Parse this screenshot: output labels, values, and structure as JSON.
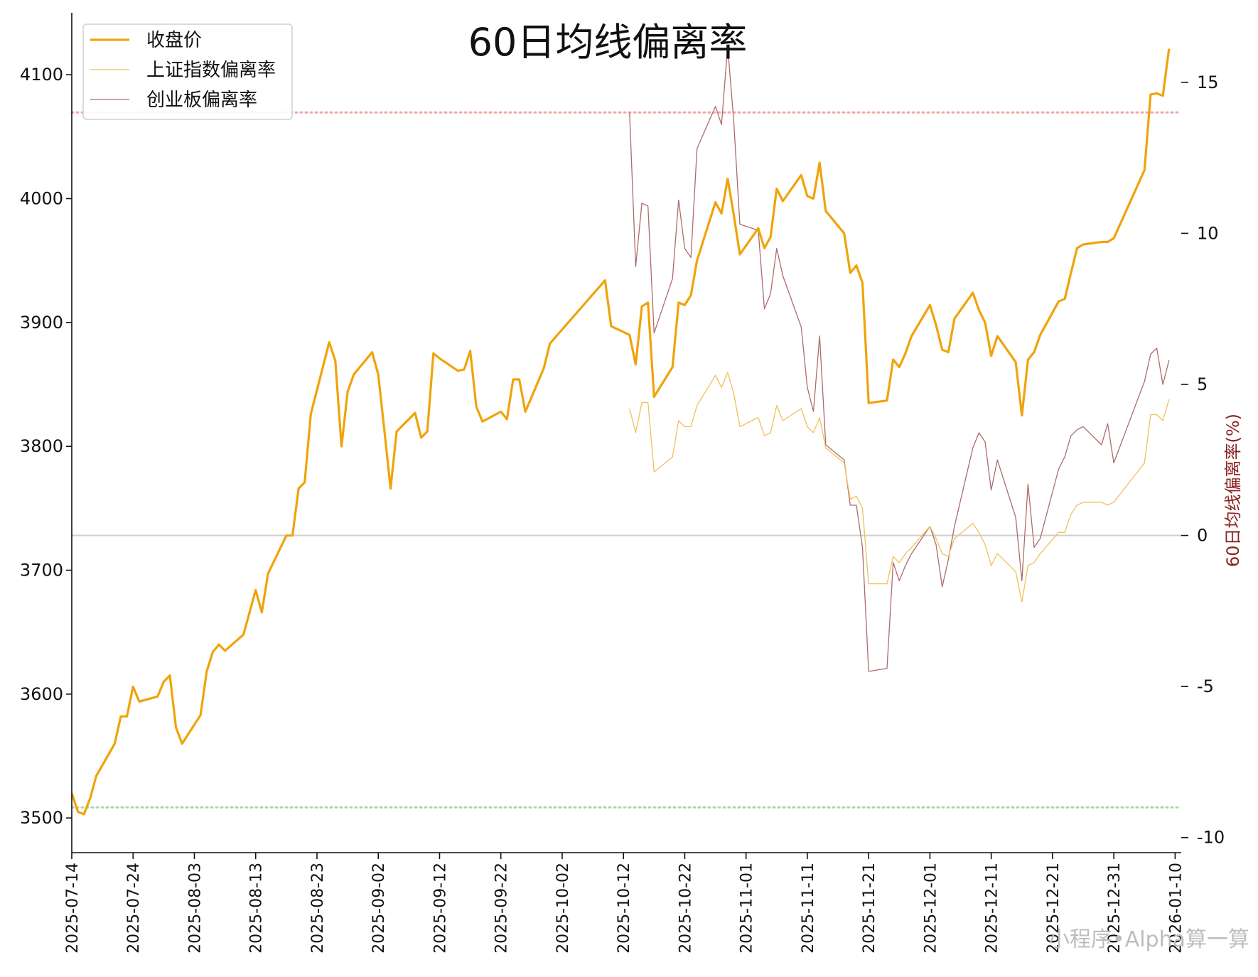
{
  "chart_data": {
    "type": "line",
    "title": "60日均线偏离率",
    "ylabel_right": "60日均线偏离率(%)",
    "ylim_left": [
      3472,
      4150
    ],
    "ylim_right": [
      -10.5,
      17.3
    ],
    "left_ticks": [
      3500,
      3600,
      3700,
      3800,
      3900,
      4000,
      4100
    ],
    "right_ticks": [
      15,
      10,
      5,
      0,
      -5,
      -10
    ],
    "x_range": [
      "2025-07-14",
      "2026-01-11"
    ],
    "x_ticks": [
      "2025-07-14",
      "2025-07-24",
      "2025-08-03",
      "2025-08-13",
      "2025-08-23",
      "2025-09-02",
      "2025-09-12",
      "2025-09-22",
      "2025-10-02",
      "2025-10-12",
      "2025-10-22",
      "2025-11-01",
      "2025-11-11",
      "2025-11-21",
      "2025-12-01",
      "2025-12-11",
      "2025-12-21",
      "2025-12-31",
      "2026-01-10"
    ],
    "legend_position": "top-left",
    "reference_lines": [
      {
        "axis": "right",
        "value": 14.0,
        "color": "#f4a6a6",
        "style": "dotted"
      },
      {
        "axis": "right",
        "value": 0,
        "color": "#d0d0d0",
        "style": "solid"
      },
      {
        "axis": "right",
        "value": -9.0,
        "color": "#a8d8a0",
        "style": "dotted"
      }
    ],
    "series": [
      {
        "name": "收盘价",
        "axis": "left",
        "color": "#f0a30a",
        "width": 3.2,
        "points": [
          [
            "2025-07-14",
            3520
          ],
          [
            "2025-07-15",
            3505
          ],
          [
            "2025-07-16",
            3503
          ],
          [
            "2025-07-17",
            3516
          ],
          [
            "2025-07-18",
            3534
          ],
          [
            "2025-07-21",
            3560
          ],
          [
            "2025-07-22",
            3582
          ],
          [
            "2025-07-23",
            3582
          ],
          [
            "2025-07-24",
            3606
          ],
          [
            "2025-07-25",
            3594
          ],
          [
            "2025-07-28",
            3598
          ],
          [
            "2025-07-29",
            3610
          ],
          [
            "2025-07-30",
            3615
          ],
          [
            "2025-07-31",
            3573
          ],
          [
            "2025-08-01",
            3560
          ],
          [
            "2025-08-04",
            3583
          ],
          [
            "2025-08-05",
            3618
          ],
          [
            "2025-08-06",
            3634
          ],
          [
            "2025-08-07",
            3640
          ],
          [
            "2025-08-08",
            3635
          ],
          [
            "2025-08-11",
            3648
          ],
          [
            "2025-08-12",
            3666
          ],
          [
            "2025-08-13",
            3684
          ],
          [
            "2025-08-14",
            3666
          ],
          [
            "2025-08-15",
            3697
          ],
          [
            "2025-08-18",
            3728
          ],
          [
            "2025-08-19",
            3728
          ],
          [
            "2025-08-20",
            3766
          ],
          [
            "2025-08-21",
            3771
          ],
          [
            "2025-08-22",
            3826
          ],
          [
            "2025-08-25",
            3884
          ],
          [
            "2025-08-26",
            3869
          ],
          [
            "2025-08-27",
            3800
          ],
          [
            "2025-08-28",
            3844
          ],
          [
            "2025-08-29",
            3858
          ],
          [
            "2025-09-01",
            3876
          ],
          [
            "2025-09-02",
            3858
          ],
          [
            "2025-09-03",
            3813
          ],
          [
            "2025-09-04",
            3766
          ],
          [
            "2025-09-05",
            3812
          ],
          [
            "2025-09-08",
            3827
          ],
          [
            "2025-09-09",
            3807
          ],
          [
            "2025-09-10",
            3812
          ],
          [
            "2025-09-11",
            3875
          ],
          [
            "2025-09-12",
            3871
          ],
          [
            "2025-09-15",
            3861
          ],
          [
            "2025-09-16",
            3862
          ],
          [
            "2025-09-17",
            3877
          ],
          [
            "2025-09-18",
            3832
          ],
          [
            "2025-09-19",
            3820
          ],
          [
            "2025-09-22",
            3828
          ],
          [
            "2025-09-23",
            3822
          ],
          [
            "2025-09-24",
            3854
          ],
          [
            "2025-09-25",
            3854
          ],
          [
            "2025-09-26",
            3828
          ],
          [
            "2025-09-29",
            3863
          ],
          [
            "2025-09-30",
            3883
          ],
          [
            "2025-10-09",
            3934
          ],
          [
            "2025-10-10",
            3897
          ],
          [
            "2025-10-13",
            3890
          ],
          [
            "2025-10-14",
            3866
          ],
          [
            "2025-10-15",
            3913
          ],
          [
            "2025-10-16",
            3916
          ],
          [
            "2025-10-17",
            3840
          ],
          [
            "2025-10-20",
            3864
          ],
          [
            "2025-10-21",
            3916
          ],
          [
            "2025-10-22",
            3914
          ],
          [
            "2025-10-23",
            3922
          ],
          [
            "2025-10-24",
            3950
          ],
          [
            "2025-10-27",
            3997
          ],
          [
            "2025-10-28",
            3988
          ],
          [
            "2025-10-29",
            4016
          ],
          [
            "2025-10-30",
            3987
          ],
          [
            "2025-10-31",
            3955
          ],
          [
            "2025-11-03",
            3976
          ],
          [
            "2025-11-04",
            3960
          ],
          [
            "2025-11-05",
            3969
          ],
          [
            "2025-11-06",
            4008
          ],
          [
            "2025-11-07",
            3998
          ],
          [
            "2025-11-10",
            4019
          ],
          [
            "2025-11-11",
            4002
          ],
          [
            "2025-11-12",
            4000
          ],
          [
            "2025-11-13",
            4029
          ],
          [
            "2025-11-14",
            3990
          ],
          [
            "2025-11-17",
            3972
          ],
          [
            "2025-11-18",
            3940
          ],
          [
            "2025-11-19",
            3946
          ],
          [
            "2025-11-20",
            3932
          ],
          [
            "2025-11-21",
            3835
          ],
          [
            "2025-11-24",
            3837
          ],
          [
            "2025-11-25",
            3870
          ],
          [
            "2025-11-26",
            3864
          ],
          [
            "2025-11-27",
            3875
          ],
          [
            "2025-11-28",
            3889
          ],
          [
            "2025-12-01",
            3914
          ],
          [
            "2025-12-02",
            3898
          ],
          [
            "2025-12-03",
            3878
          ],
          [
            "2025-12-04",
            3876
          ],
          [
            "2025-12-05",
            3903
          ],
          [
            "2025-12-08",
            3924
          ],
          [
            "2025-12-09",
            3910
          ],
          [
            "2025-12-10",
            3900
          ],
          [
            "2025-12-11",
            3873
          ],
          [
            "2025-12-12",
            3889
          ],
          [
            "2025-12-15",
            3868
          ],
          [
            "2025-12-16",
            3825
          ],
          [
            "2025-12-17",
            3870
          ],
          [
            "2025-12-18",
            3876
          ],
          [
            "2025-12-19",
            3890
          ],
          [
            "2025-12-22",
            3917
          ],
          [
            "2025-12-23",
            3919
          ],
          [
            "2025-12-24",
            3940
          ],
          [
            "2025-12-25",
            3960
          ],
          [
            "2025-12-26",
            3963
          ],
          [
            "2025-12-29",
            3965
          ],
          [
            "2025-12-30",
            3965
          ],
          [
            "2025-12-31",
            3968
          ],
          [
            "2026-01-05",
            4023
          ],
          [
            "2026-01-06",
            4084
          ],
          [
            "2026-01-07",
            4085
          ],
          [
            "2026-01-08",
            4083
          ],
          [
            "2026-01-09",
            4121
          ]
        ]
      },
      {
        "name": "上证指数偏离率",
        "axis": "right",
        "color": "#efc15a",
        "width": 1.3,
        "points": [
          [
            "2025-10-13",
            4.2
          ],
          [
            "2025-10-14",
            3.4
          ],
          [
            "2025-10-15",
            4.4
          ],
          [
            "2025-10-16",
            4.4
          ],
          [
            "2025-10-17",
            2.1
          ],
          [
            "2025-10-20",
            2.6
          ],
          [
            "2025-10-21",
            3.8
          ],
          [
            "2025-10-22",
            3.6
          ],
          [
            "2025-10-23",
            3.6
          ],
          [
            "2025-10-24",
            4.3
          ],
          [
            "2025-10-27",
            5.3
          ],
          [
            "2025-10-28",
            4.9
          ],
          [
            "2025-10-29",
            5.4
          ],
          [
            "2025-10-30",
            4.7
          ],
          [
            "2025-10-31",
            3.6
          ],
          [
            "2025-11-03",
            3.9
          ],
          [
            "2025-11-04",
            3.3
          ],
          [
            "2025-11-05",
            3.4
          ],
          [
            "2025-11-06",
            4.3
          ],
          [
            "2025-11-07",
            3.8
          ],
          [
            "2025-11-10",
            4.2
          ],
          [
            "2025-11-11",
            3.6
          ],
          [
            "2025-11-12",
            3.4
          ],
          [
            "2025-11-13",
            3.9
          ],
          [
            "2025-11-14",
            2.9
          ],
          [
            "2025-11-17",
            2.4
          ],
          [
            "2025-11-18",
            1.2
          ],
          [
            "2025-11-19",
            1.3
          ],
          [
            "2025-11-20",
            0.9
          ],
          [
            "2025-11-21",
            -1.6
          ],
          [
            "2025-11-24",
            -1.6
          ],
          [
            "2025-11-25",
            -0.7
          ],
          [
            "2025-11-26",
            -0.9
          ],
          [
            "2025-11-27",
            -0.6
          ],
          [
            "2025-11-28",
            -0.4
          ],
          [
            "2025-12-01",
            0.3
          ],
          [
            "2025-12-02",
            -0.1
          ],
          [
            "2025-12-03",
            -0.6
          ],
          [
            "2025-12-04",
            -0.7
          ],
          [
            "2025-12-05",
            -0.1
          ],
          [
            "2025-12-08",
            0.4
          ],
          [
            "2025-12-09",
            0.1
          ],
          [
            "2025-12-10",
            -0.3
          ],
          [
            "2025-12-11",
            -1.0
          ],
          [
            "2025-12-12",
            -0.6
          ],
          [
            "2025-12-15",
            -1.2
          ],
          [
            "2025-12-16",
            -2.2
          ],
          [
            "2025-12-17",
            -1.0
          ],
          [
            "2025-12-18",
            -0.9
          ],
          [
            "2025-12-19",
            -0.6
          ],
          [
            "2025-12-22",
            0.1
          ],
          [
            "2025-12-23",
            0.1
          ],
          [
            "2025-12-24",
            0.7
          ],
          [
            "2025-12-25",
            1.0
          ],
          [
            "2025-12-26",
            1.1
          ],
          [
            "2025-12-29",
            1.1
          ],
          [
            "2025-12-30",
            1.0
          ],
          [
            "2025-12-31",
            1.1
          ],
          [
            "2026-01-05",
            2.4
          ],
          [
            "2026-01-06",
            4.0
          ],
          [
            "2026-01-07",
            4.0
          ],
          [
            "2026-01-08",
            3.8
          ],
          [
            "2026-01-09",
            4.5
          ]
        ]
      },
      {
        "name": "创业板偏离率",
        "axis": "right",
        "color": "#b06a6a",
        "width": 1.3,
        "points": [
          [
            "2025-10-13",
            14.0
          ],
          [
            "2025-10-14",
            8.9
          ],
          [
            "2025-10-15",
            11.0
          ],
          [
            "2025-10-16",
            10.9
          ],
          [
            "2025-10-17",
            6.7
          ],
          [
            "2025-10-20",
            8.5
          ],
          [
            "2025-10-21",
            11.1
          ],
          [
            "2025-10-22",
            9.5
          ],
          [
            "2025-10-23",
            9.2
          ],
          [
            "2025-10-24",
            12.8
          ],
          [
            "2025-10-27",
            14.2
          ],
          [
            "2025-10-28",
            13.6
          ],
          [
            "2025-10-29",
            16.2
          ],
          [
            "2025-10-30",
            13.7
          ],
          [
            "2025-10-31",
            10.3
          ],
          [
            "2025-11-03",
            10.1
          ],
          [
            "2025-11-04",
            7.5
          ],
          [
            "2025-11-05",
            8.0
          ],
          [
            "2025-11-06",
            9.5
          ],
          [
            "2025-11-07",
            8.6
          ],
          [
            "2025-11-10",
            6.9
          ],
          [
            "2025-11-11",
            4.9
          ],
          [
            "2025-11-12",
            4.1
          ],
          [
            "2025-11-13",
            6.6
          ],
          [
            "2025-11-14",
            3.0
          ],
          [
            "2025-11-17",
            2.5
          ],
          [
            "2025-11-18",
            1.0
          ],
          [
            "2025-11-19",
            1.0
          ],
          [
            "2025-11-20",
            -0.4
          ],
          [
            "2025-11-21",
            -4.5
          ],
          [
            "2025-11-24",
            -4.4
          ],
          [
            "2025-11-25",
            -0.9
          ],
          [
            "2025-11-26",
            -1.5
          ],
          [
            "2025-11-27",
            -1.0
          ],
          [
            "2025-11-28",
            -0.6
          ],
          [
            "2025-12-01",
            0.3
          ],
          [
            "2025-12-02",
            -0.3
          ],
          [
            "2025-12-03",
            -1.7
          ],
          [
            "2025-12-04",
            -0.8
          ],
          [
            "2025-12-05",
            0.3
          ],
          [
            "2025-12-08",
            2.9
          ],
          [
            "2025-12-09",
            3.4
          ],
          [
            "2025-12-10",
            3.1
          ],
          [
            "2025-12-11",
            1.5
          ],
          [
            "2025-12-12",
            2.5
          ],
          [
            "2025-12-15",
            0.6
          ],
          [
            "2025-12-16",
            -1.5
          ],
          [
            "2025-12-17",
            1.7
          ],
          [
            "2025-12-18",
            -0.4
          ],
          [
            "2025-12-19",
            -0.1
          ],
          [
            "2025-12-22",
            2.2
          ],
          [
            "2025-12-23",
            2.6
          ],
          [
            "2025-12-24",
            3.3
          ],
          [
            "2025-12-25",
            3.5
          ],
          [
            "2025-12-26",
            3.6
          ],
          [
            "2025-12-29",
            3.0
          ],
          [
            "2025-12-30",
            3.7
          ],
          [
            "2025-12-31",
            2.4
          ],
          [
            "2026-01-05",
            5.1
          ],
          [
            "2026-01-06",
            6.0
          ],
          [
            "2026-01-07",
            6.2
          ],
          [
            "2026-01-08",
            5.0
          ],
          [
            "2026-01-09",
            5.8
          ]
        ]
      }
    ]
  },
  "watermark": "小程序•Alpha算一算"
}
